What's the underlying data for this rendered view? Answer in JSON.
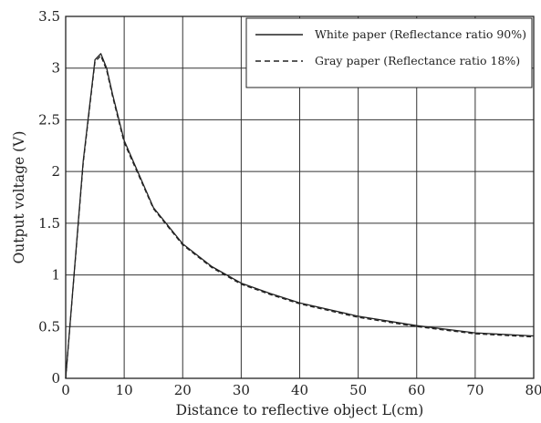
{
  "chart_data": {
    "type": "line",
    "title": "",
    "xlabel": "Distance to reflective object L(cm)",
    "ylabel": "Output voltage (V)",
    "xlim": [
      0,
      80
    ],
    "ylim": [
      0,
      3.5
    ],
    "x_ticks": [
      "0",
      "10",
      "20",
      "30",
      "40",
      "50",
      "60",
      "70",
      "80"
    ],
    "y_ticks": [
      "0",
      "0.5",
      "1",
      "1.5",
      "2",
      "2.5",
      "3",
      "3.5"
    ],
    "grid": true,
    "legend_position": "top-right",
    "series": [
      {
        "name": "White paper (Reflectance ratio 90%)",
        "style": "solid",
        "color": "#222222",
        "points": [
          [
            0,
            0
          ],
          [
            3,
            2.1
          ],
          [
            5,
            3.08
          ],
          [
            6,
            3.14
          ],
          [
            7,
            3.0
          ],
          [
            8,
            2.75
          ],
          [
            10,
            2.3
          ],
          [
            15,
            1.65
          ],
          [
            20,
            1.3
          ],
          [
            25,
            1.08
          ],
          [
            30,
            0.92
          ],
          [
            35,
            0.82
          ],
          [
            40,
            0.73
          ],
          [
            50,
            0.6
          ],
          [
            60,
            0.51
          ],
          [
            70,
            0.44
          ],
          [
            80,
            0.41
          ]
        ]
      },
      {
        "name": "Gray paper (Reflectance ratio 18%)",
        "style": "dashed",
        "color": "#222222",
        "points": [
          [
            0,
            0
          ],
          [
            3,
            2.08
          ],
          [
            5,
            3.06
          ],
          [
            6,
            3.12
          ],
          [
            7,
            2.98
          ],
          [
            8,
            2.73
          ],
          [
            10,
            2.28
          ],
          [
            15,
            1.64
          ],
          [
            20,
            1.29
          ],
          [
            25,
            1.07
          ],
          [
            30,
            0.91
          ],
          [
            35,
            0.81
          ],
          [
            40,
            0.72
          ],
          [
            50,
            0.59
          ],
          [
            60,
            0.5
          ],
          [
            70,
            0.43
          ],
          [
            80,
            0.4
          ]
        ]
      }
    ]
  }
}
